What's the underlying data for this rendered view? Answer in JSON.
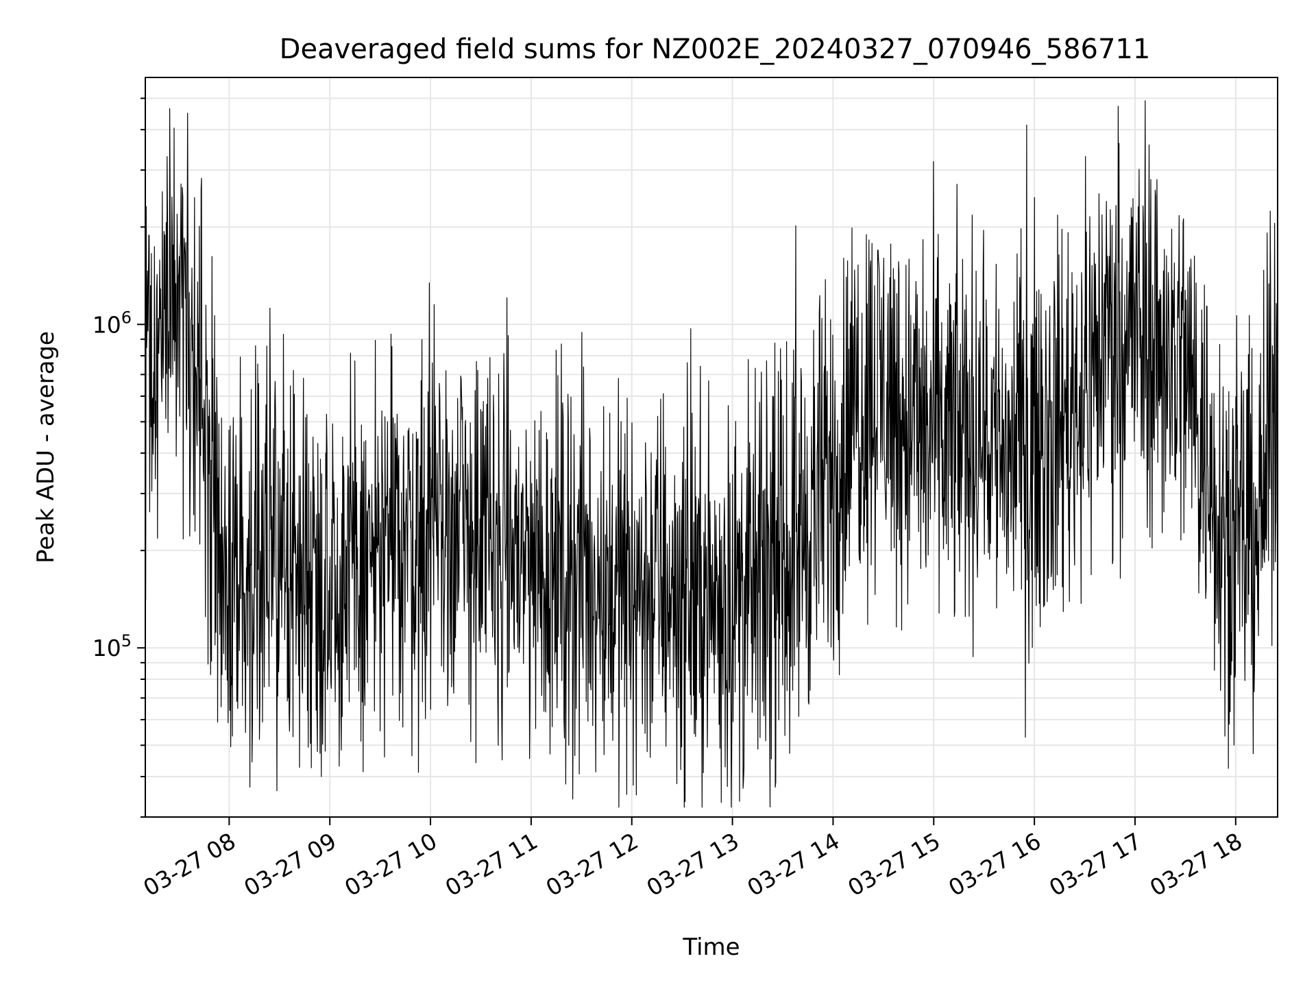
{
  "chart_data": {
    "type": "line",
    "title": "Deaveraged field sums for NZ002E_20240327_070946_586711",
    "xlabel": "Time",
    "ylabel": "Peak ADU - average",
    "x_scale": "time",
    "y_scale": "log",
    "xlim": [
      "2024-03-27 07:10",
      "2024-03-27 18:25"
    ],
    "ylim": [
      30000,
      5800000
    ],
    "x_ticks": [
      {
        "value": "2024-03-27 08:00",
        "label": "03-27 08"
      },
      {
        "value": "2024-03-27 09:00",
        "label": "03-27 09"
      },
      {
        "value": "2024-03-27 10:00",
        "label": "03-27 10"
      },
      {
        "value": "2024-03-27 11:00",
        "label": "03-27 11"
      },
      {
        "value": "2024-03-27 12:00",
        "label": "03-27 12"
      },
      {
        "value": "2024-03-27 13:00",
        "label": "03-27 13"
      },
      {
        "value": "2024-03-27 14:00",
        "label": "03-27 14"
      },
      {
        "value": "2024-03-27 15:00",
        "label": "03-27 15"
      },
      {
        "value": "2024-03-27 16:00",
        "label": "03-27 16"
      },
      {
        "value": "2024-03-27 17:00",
        "label": "03-27 17"
      },
      {
        "value": "2024-03-27 18:00",
        "label": "03-27 18"
      }
    ],
    "y_major_ticks": [
      {
        "value": 100000,
        "base": "10",
        "exp": "5"
      },
      {
        "value": 1000000,
        "base": "10",
        "exp": "6"
      }
    ],
    "grid": true,
    "line_color": "#000000",
    "grid_color": "#e6e6e6",
    "series": [
      {
        "x": [
          "2024-03-27 07:10",
          "2024-03-27 07:20",
          "2024-03-27 07:30",
          "2024-03-27 07:40",
          "2024-03-27 07:50",
          "2024-03-27 08:00",
          "2024-03-27 08:15",
          "2024-03-27 08:30",
          "2024-03-27 08:45",
          "2024-03-27 09:00",
          "2024-03-27 09:15",
          "2024-03-27 09:30",
          "2024-03-27 09:45",
          "2024-03-27 10:00",
          "2024-03-27 10:15",
          "2024-03-27 10:30",
          "2024-03-27 10:45",
          "2024-03-27 11:00",
          "2024-03-27 11:15",
          "2024-03-27 11:30",
          "2024-03-27 11:45",
          "2024-03-27 12:00",
          "2024-03-27 12:15",
          "2024-03-27 12:30",
          "2024-03-27 12:45",
          "2024-03-27 13:00",
          "2024-03-27 13:15",
          "2024-03-27 13:30",
          "2024-03-27 13:45",
          "2024-03-27 14:00",
          "2024-03-27 14:15",
          "2024-03-27 14:30",
          "2024-03-27 14:45",
          "2024-03-27 15:00",
          "2024-03-27 15:15",
          "2024-03-27 15:30",
          "2024-03-27 15:45",
          "2024-03-27 16:00",
          "2024-03-27 16:15",
          "2024-03-27 16:30",
          "2024-03-27 16:45",
          "2024-03-27 17:00",
          "2024-03-27 17:15",
          "2024-03-27 17:30",
          "2024-03-27 17:45",
          "2024-03-27 18:00",
          "2024-03-27 18:15",
          "2024-03-27 18:25"
        ],
        "y": [
          700000,
          850000,
          1200000,
          750000,
          350000,
          150000,
          180000,
          200000,
          170000,
          180000,
          160000,
          200000,
          220000,
          250000,
          230000,
          220000,
          200000,
          190000,
          180000,
          170000,
          160000,
          150000,
          160000,
          150000,
          140000,
          140000,
          150000,
          180000,
          250000,
          350000,
          600000,
          650000,
          500000,
          450000,
          450000,
          500000,
          400000,
          450000,
          500000,
          650000,
          1000000,
          950000,
          850000,
          750000,
          350000,
          200000,
          250000,
          700000
        ]
      }
    ]
  }
}
